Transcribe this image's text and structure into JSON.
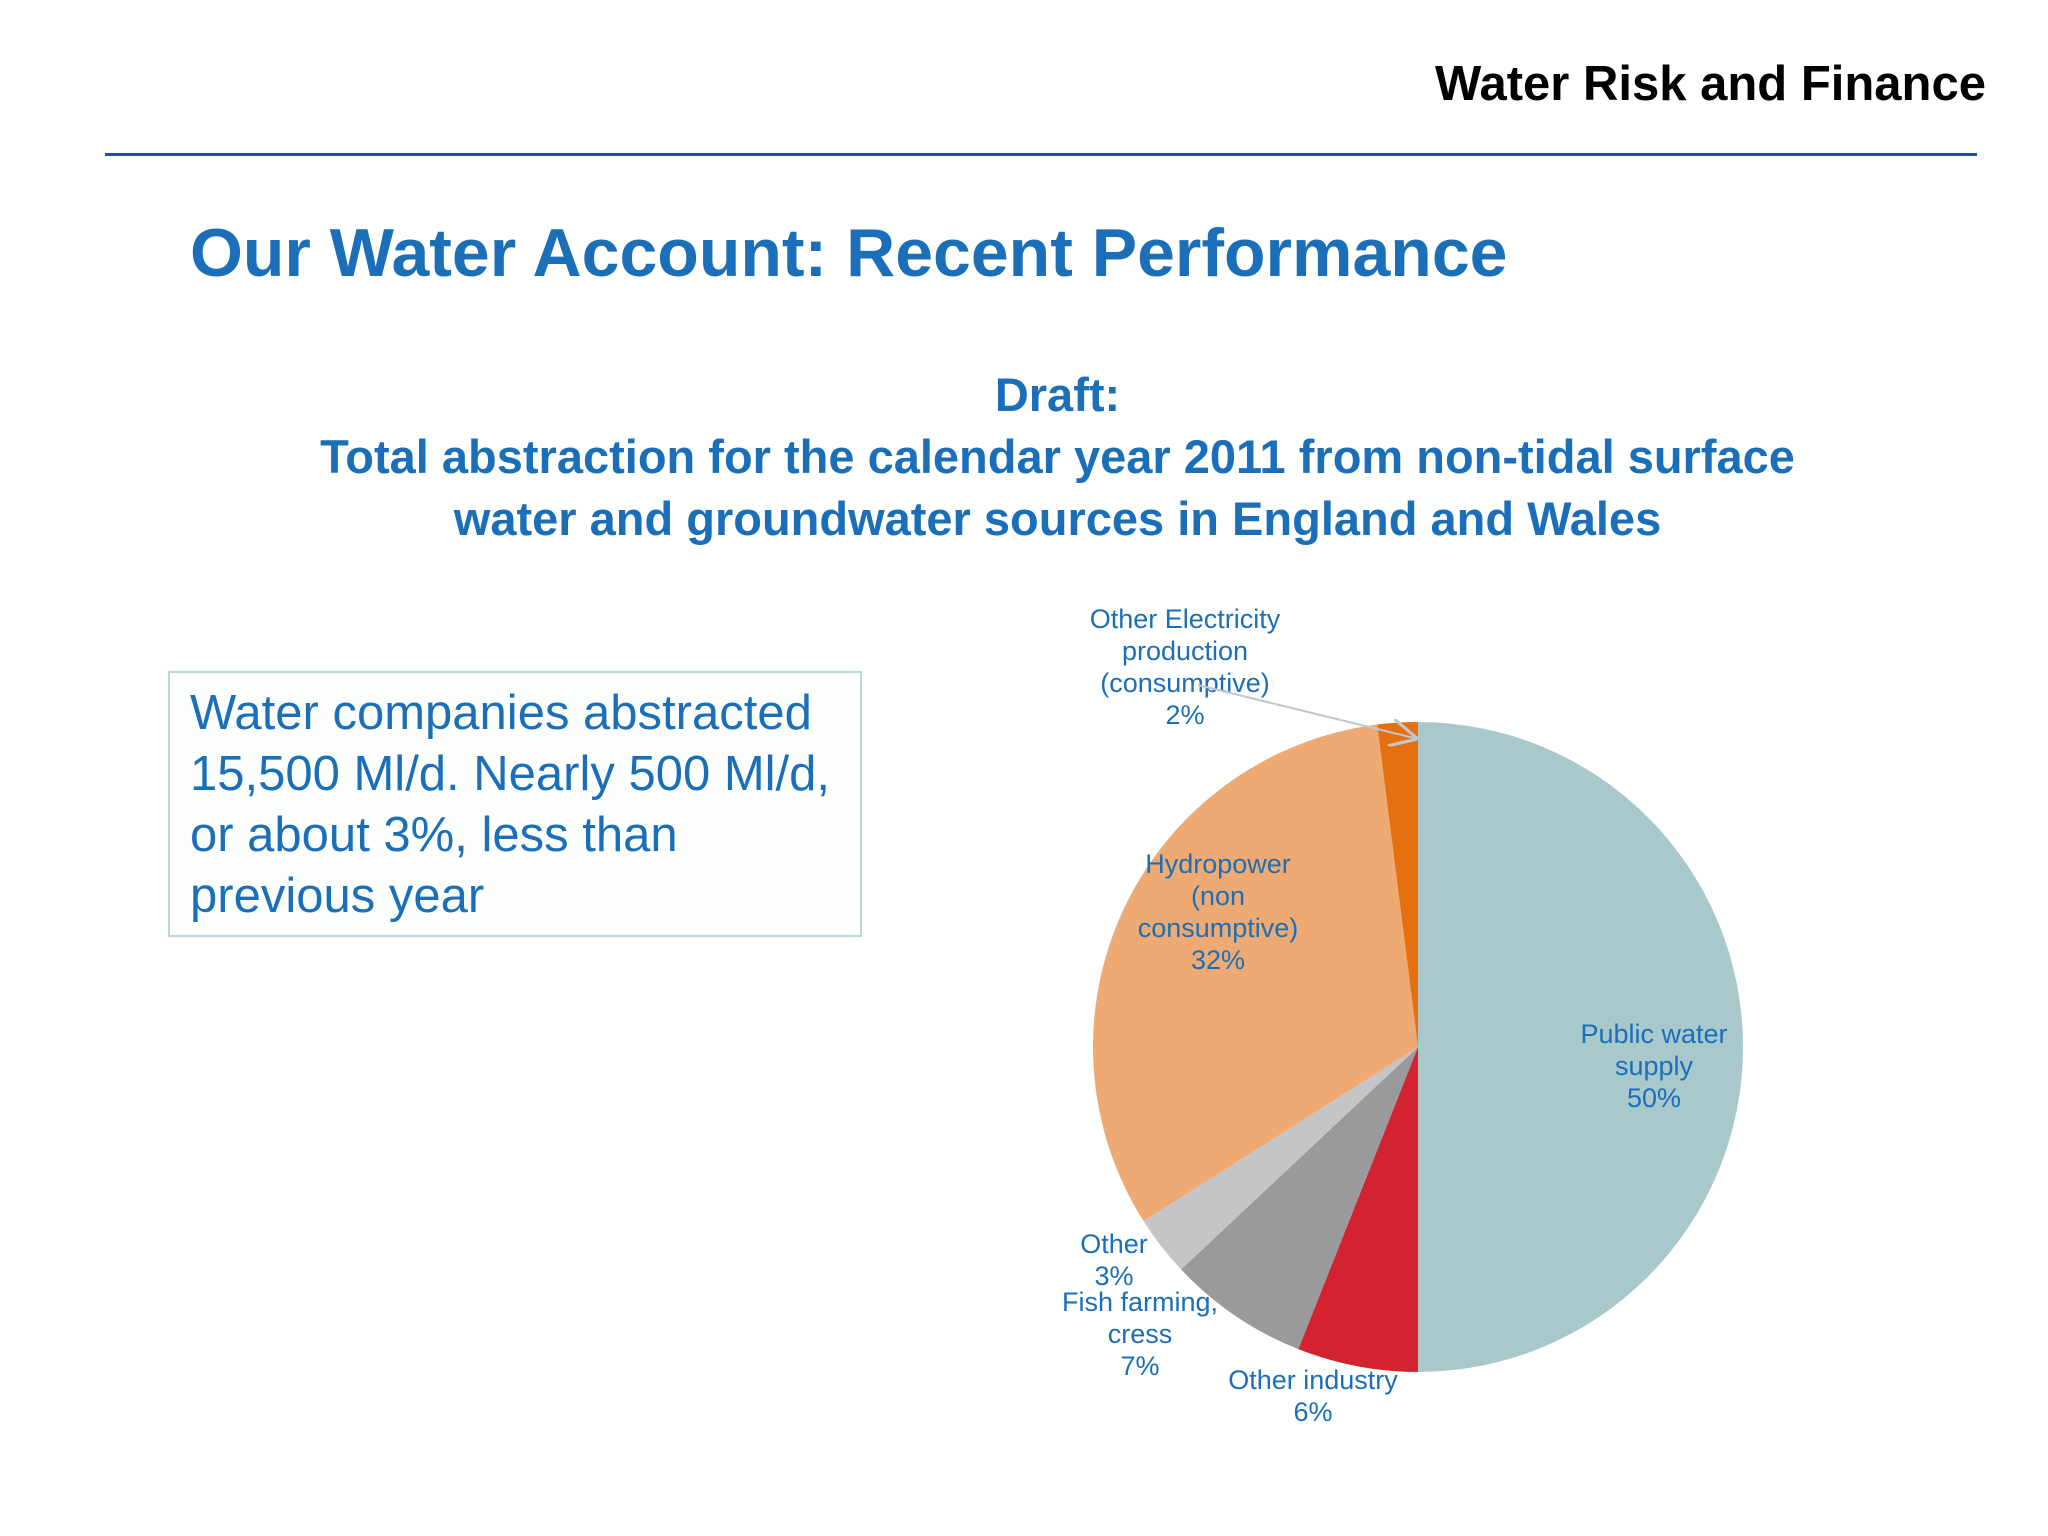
{
  "header": {
    "brand": "Water Risk and Finance"
  },
  "slide": {
    "title": "Our Water Account: Recent Performance"
  },
  "chart_heading": {
    "line1": "Draft:",
    "line2": "Total abstraction for the calendar year 2011 from non-tidal surface",
    "line3": "water and groundwater sources in England and Wales"
  },
  "callout": {
    "line1": "Water companies abstracted",
    "line2": "15,500 Ml/d. Nearly 500 Ml/d,",
    "line3": "or about 3%, less than",
    "line4": "previous year"
  },
  "colors": {
    "accent": "#1a6fb8",
    "rule": "#1f4e9c",
    "label": "#1a6fb8"
  },
  "chart_data": {
    "type": "pie",
    "title": "Total abstraction for the calendar year 2011 from non-tidal surface water and groundwater sources in England and Wales",
    "slices": [
      {
        "label_lines": [
          "Public water",
          "supply",
          "50%"
        ],
        "value": 50,
        "color": "#a8c8cb"
      },
      {
        "label_lines": [
          "Other industry",
          "6%"
        ],
        "value": 6,
        "color": "#d42330"
      },
      {
        "label_lines": [
          "Fish farming,",
          "cress",
          "7%"
        ],
        "value": 7,
        "color": "#9a999c"
      },
      {
        "label_lines": [
          "Other",
          "3%"
        ],
        "value": 3,
        "color": "#c5c5c7"
      },
      {
        "label_lines": [
          "Hydropower",
          "(non",
          "consumptive)",
          "32%"
        ],
        "value": 32,
        "color": "#eeaa72"
      },
      {
        "label_lines": [
          "Other Electricity",
          "production",
          "(consumptive)",
          "2%"
        ],
        "value": 2,
        "color": "#e5700f"
      }
    ]
  }
}
